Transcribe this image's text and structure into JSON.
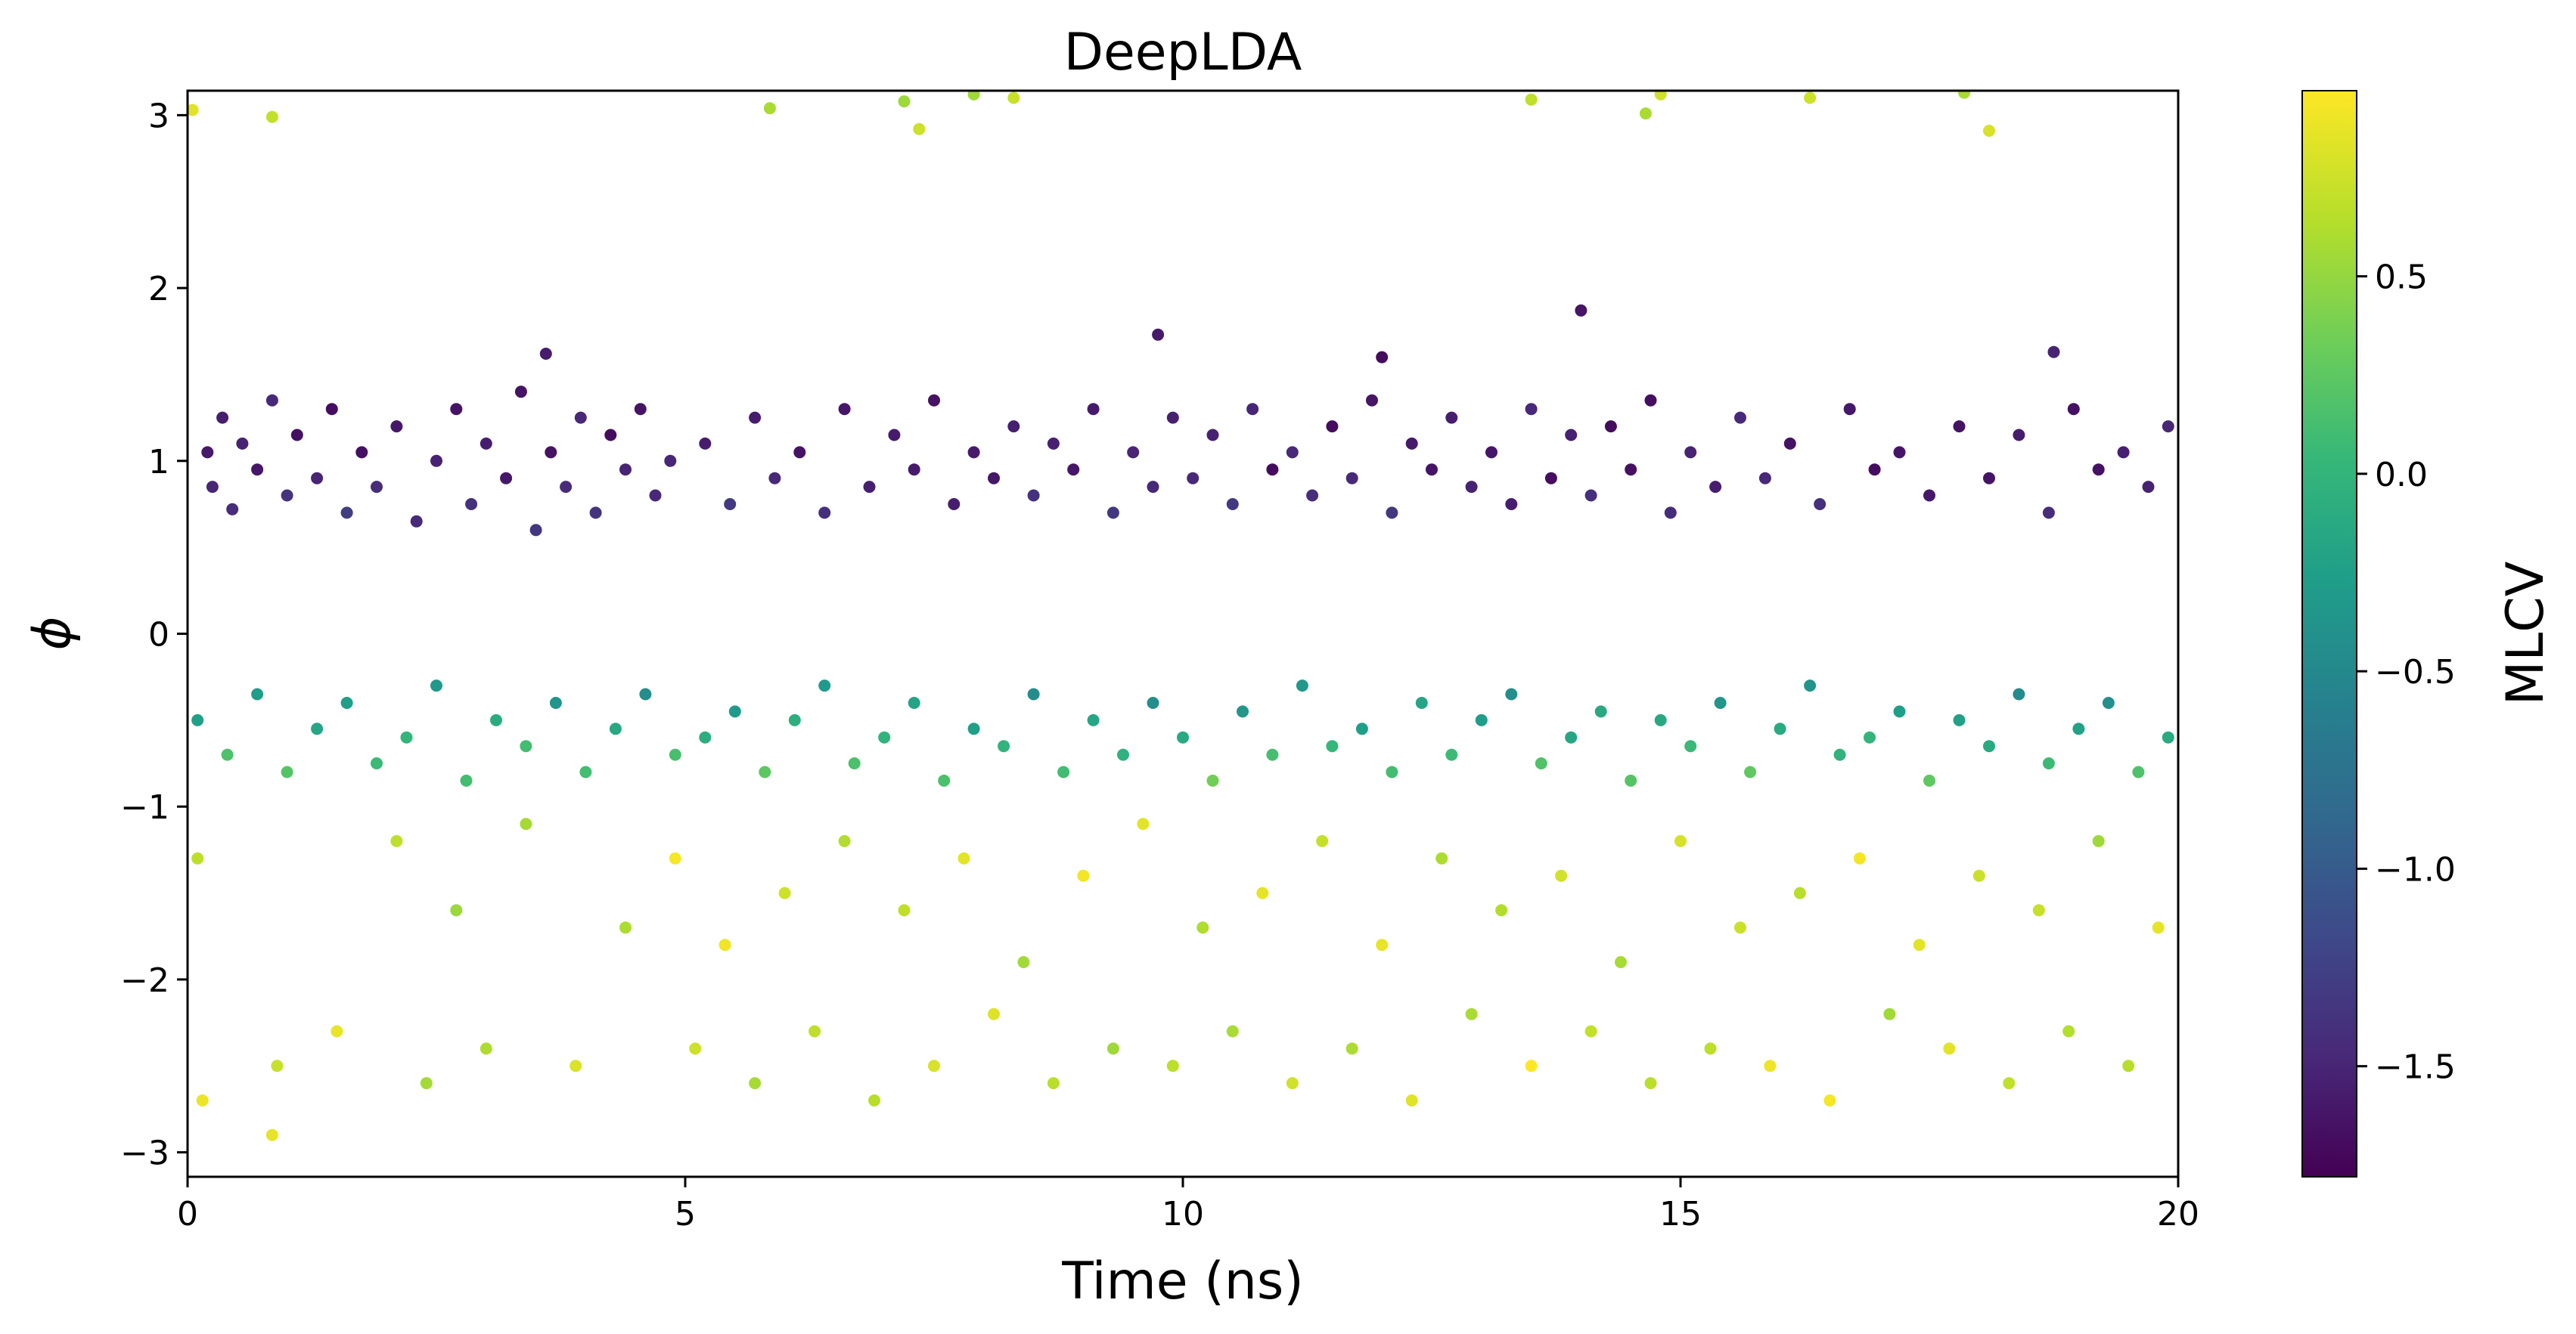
{
  "chart_data": {
    "type": "scatter",
    "title": "DeepLDA",
    "xlabel": "Time (ns)",
    "ylabel": "ϕ",
    "xlim": [
      0,
      20
    ],
    "ylim": [
      -3.14159,
      3.14159
    ],
    "x_ticks": [
      0,
      5,
      10,
      15,
      20
    ],
    "x_tick_labels": [
      "0",
      "5",
      "10",
      "15",
      "20"
    ],
    "y_ticks": [
      -3,
      -2,
      -1,
      0,
      1,
      2,
      3
    ],
    "y_tick_labels": [
      "−3",
      "−2",
      "−1",
      "0",
      "1",
      "2",
      "3"
    ],
    "grid": false,
    "colorbar": {
      "label": "MLCV",
      "colormap": "viridis",
      "range": [
        -1.78,
        0.97
      ],
      "ticks": [
        -1.5,
        -1.0,
        -0.5,
        0.0,
        0.5
      ],
      "tick_labels": [
        "−1.5",
        "−1.0",
        "−0.5",
        "0.0",
        "0.5"
      ]
    },
    "series": [
      {
        "region": "upper state, phi ≈ 0.2 to 1.6",
        "color_value": "≈ -1.6 to -1.2",
        "points": [
          [
            0.2,
            1.05
          ],
          [
            0.25,
            0.85
          ],
          [
            0.35,
            1.25
          ],
          [
            0.45,
            0.72
          ],
          [
            0.55,
            1.1
          ],
          [
            0.7,
            0.95
          ],
          [
            0.85,
            1.35
          ],
          [
            1.0,
            0.8
          ],
          [
            1.1,
            1.15
          ],
          [
            1.3,
            0.9
          ],
          [
            1.45,
            1.3
          ],
          [
            1.6,
            0.7
          ],
          [
            1.75,
            1.05
          ],
          [
            1.9,
            0.85
          ],
          [
            2.1,
            1.2
          ],
          [
            2.3,
            0.65
          ],
          [
            2.5,
            1.0
          ],
          [
            2.7,
            1.3
          ],
          [
            2.85,
            0.75
          ],
          [
            3.0,
            1.1
          ],
          [
            3.2,
            0.9
          ],
          [
            3.35,
            1.4
          ],
          [
            3.5,
            0.6
          ],
          [
            3.65,
            1.05
          ],
          [
            3.8,
            0.85
          ],
          [
            3.95,
            1.25
          ],
          [
            4.1,
            0.7
          ],
          [
            4.25,
            1.15
          ],
          [
            4.4,
            0.95
          ],
          [
            4.55,
            1.3
          ],
          [
            4.7,
            0.8
          ],
          [
            4.85,
            1.0
          ],
          [
            5.2,
            1.1
          ],
          [
            5.45,
            0.75
          ],
          [
            5.7,
            1.25
          ],
          [
            5.9,
            0.9
          ],
          [
            6.15,
            1.05
          ],
          [
            6.4,
            0.7
          ],
          [
            6.6,
            1.3
          ],
          [
            6.85,
            0.85
          ],
          [
            7.1,
            1.15
          ],
          [
            7.3,
            0.95
          ],
          [
            7.5,
            1.35
          ],
          [
            7.7,
            0.75
          ],
          [
            7.9,
            1.05
          ],
          [
            8.1,
            0.9
          ],
          [
            8.3,
            1.2
          ],
          [
            8.5,
            0.8
          ],
          [
            8.7,
            1.1
          ],
          [
            8.9,
            0.95
          ],
          [
            9.1,
            1.3
          ],
          [
            9.3,
            0.7
          ],
          [
            9.5,
            1.05
          ],
          [
            9.7,
            0.85
          ],
          [
            9.9,
            1.25
          ],
          [
            10.1,
            0.9
          ],
          [
            10.3,
            1.15
          ],
          [
            10.5,
            0.75
          ],
          [
            10.7,
            1.3
          ],
          [
            10.9,
            0.95
          ],
          [
            11.1,
            1.05
          ],
          [
            11.3,
            0.8
          ],
          [
            11.5,
            1.2
          ],
          [
            11.7,
            0.9
          ],
          [
            11.9,
            1.35
          ],
          [
            12.1,
            0.7
          ],
          [
            12.3,
            1.1
          ],
          [
            12.5,
            0.95
          ],
          [
            12.7,
            1.25
          ],
          [
            12.9,
            0.85
          ],
          [
            13.1,
            1.05
          ],
          [
            13.3,
            0.75
          ],
          [
            13.5,
            1.3
          ],
          [
            13.7,
            0.9
          ],
          [
            13.9,
            1.15
          ],
          [
            14.1,
            0.8
          ],
          [
            14.3,
            1.2
          ],
          [
            14.5,
            0.95
          ],
          [
            14.7,
            1.35
          ],
          [
            14.9,
            0.7
          ],
          [
            15.1,
            1.05
          ],
          [
            15.35,
            0.85
          ],
          [
            15.6,
            1.25
          ],
          [
            15.85,
            0.9
          ],
          [
            16.1,
            1.1
          ],
          [
            16.4,
            0.75
          ],
          [
            16.7,
            1.3
          ],
          [
            16.95,
            0.95
          ],
          [
            17.2,
            1.05
          ],
          [
            17.5,
            0.8
          ],
          [
            17.8,
            1.2
          ],
          [
            18.1,
            0.9
          ],
          [
            18.4,
            1.15
          ],
          [
            18.7,
            0.7
          ],
          [
            18.95,
            1.3
          ],
          [
            19.2,
            0.95
          ],
          [
            19.45,
            1.05
          ],
          [
            19.7,
            0.85
          ],
          [
            19.9,
            1.2
          ],
          [
            14.0,
            1.87
          ],
          [
            9.75,
            1.73
          ],
          [
            12.0,
            1.6
          ],
          [
            3.6,
            1.62
          ],
          [
            18.75,
            1.63
          ]
        ]
      },
      {
        "region": "transition band, phi ≈ -0.9 to -0.2",
        "color_value": "≈ -0.8 to 0.4",
        "points": [
          [
            0.1,
            -0.5
          ],
          [
            0.4,
            -0.7
          ],
          [
            0.7,
            -0.35
          ],
          [
            1.0,
            -0.8
          ],
          [
            1.3,
            -0.55
          ],
          [
            1.6,
            -0.4
          ],
          [
            1.9,
            -0.75
          ],
          [
            2.2,
            -0.6
          ],
          [
            2.5,
            -0.3
          ],
          [
            2.8,
            -0.85
          ],
          [
            3.1,
            -0.5
          ],
          [
            3.4,
            -0.65
          ],
          [
            3.7,
            -0.4
          ],
          [
            4.0,
            -0.8
          ],
          [
            4.3,
            -0.55
          ],
          [
            4.6,
            -0.35
          ],
          [
            4.9,
            -0.7
          ],
          [
            5.2,
            -0.6
          ],
          [
            5.5,
            -0.45
          ],
          [
            5.8,
            -0.8
          ],
          [
            6.1,
            -0.5
          ],
          [
            6.4,
            -0.3
          ],
          [
            6.7,
            -0.75
          ],
          [
            7.0,
            -0.6
          ],
          [
            7.3,
            -0.4
          ],
          [
            7.6,
            -0.85
          ],
          [
            7.9,
            -0.55
          ],
          [
            8.2,
            -0.65
          ],
          [
            8.5,
            -0.35
          ],
          [
            8.8,
            -0.8
          ],
          [
            9.1,
            -0.5
          ],
          [
            9.4,
            -0.7
          ],
          [
            9.7,
            -0.4
          ],
          [
            10.0,
            -0.6
          ],
          [
            10.3,
            -0.85
          ],
          [
            10.6,
            -0.45
          ],
          [
            10.9,
            -0.7
          ],
          [
            11.2,
            -0.3
          ],
          [
            11.5,
            -0.65
          ],
          [
            11.8,
            -0.55
          ],
          [
            12.1,
            -0.8
          ],
          [
            12.4,
            -0.4
          ],
          [
            12.7,
            -0.7
          ],
          [
            13.0,
            -0.5
          ],
          [
            13.3,
            -0.35
          ],
          [
            13.6,
            -0.75
          ],
          [
            13.9,
            -0.6
          ],
          [
            14.2,
            -0.45
          ],
          [
            14.5,
            -0.85
          ],
          [
            14.8,
            -0.5
          ],
          [
            15.1,
            -0.65
          ],
          [
            15.4,
            -0.4
          ],
          [
            15.7,
            -0.8
          ],
          [
            16.0,
            -0.55
          ],
          [
            16.3,
            -0.3
          ],
          [
            16.6,
            -0.7
          ],
          [
            16.9,
            -0.6
          ],
          [
            17.2,
            -0.45
          ],
          [
            17.5,
            -0.85
          ],
          [
            17.8,
            -0.5
          ],
          [
            18.1,
            -0.65
          ],
          [
            18.4,
            -0.35
          ],
          [
            18.7,
            -0.75
          ],
          [
            19.0,
            -0.55
          ],
          [
            19.3,
            -0.4
          ],
          [
            19.6,
            -0.8
          ],
          [
            19.9,
            -0.6
          ]
        ]
      },
      {
        "region": "lower state, phi ≈ -3.14 to -1.0",
        "color_value": "≈ 0.5 to 0.95",
        "points": [
          [
            0.1,
            -1.3
          ],
          [
            0.15,
            -2.7
          ],
          [
            0.85,
            -2.9
          ],
          [
            0.9,
            -2.5
          ],
          [
            1.5,
            -2.3
          ],
          [
            2.1,
            -1.2
          ],
          [
            2.4,
            -2.6
          ],
          [
            2.7,
            -1.6
          ],
          [
            3.0,
            -2.4
          ],
          [
            3.4,
            -1.1
          ],
          [
            3.9,
            -2.5
          ],
          [
            4.4,
            -1.7
          ],
          [
            4.9,
            -1.3
          ],
          [
            5.1,
            -2.4
          ],
          [
            5.4,
            -1.8
          ],
          [
            5.7,
            -2.6
          ],
          [
            6.0,
            -1.5
          ],
          [
            6.3,
            -2.3
          ],
          [
            6.6,
            -1.2
          ],
          [
            6.9,
            -2.7
          ],
          [
            7.2,
            -1.6
          ],
          [
            7.5,
            -2.5
          ],
          [
            7.8,
            -1.3
          ],
          [
            8.1,
            -2.2
          ],
          [
            8.4,
            -1.9
          ],
          [
            8.7,
            -2.6
          ],
          [
            9.0,
            -1.4
          ],
          [
            9.3,
            -2.4
          ],
          [
            9.6,
            -1.1
          ],
          [
            9.9,
            -2.5
          ],
          [
            10.2,
            -1.7
          ],
          [
            10.5,
            -2.3
          ],
          [
            10.8,
            -1.5
          ],
          [
            11.1,
            -2.6
          ],
          [
            11.4,
            -1.2
          ],
          [
            11.7,
            -2.4
          ],
          [
            12.0,
            -1.8
          ],
          [
            12.3,
            -2.7
          ],
          [
            12.6,
            -1.3
          ],
          [
            12.9,
            -2.2
          ],
          [
            13.2,
            -1.6
          ],
          [
            13.5,
            -2.5
          ],
          [
            13.8,
            -1.4
          ],
          [
            14.1,
            -2.3
          ],
          [
            14.4,
            -1.9
          ],
          [
            14.7,
            -2.6
          ],
          [
            15.0,
            -1.2
          ],
          [
            15.3,
            -2.4
          ],
          [
            15.6,
            -1.7
          ],
          [
            15.9,
            -2.5
          ],
          [
            16.2,
            -1.5
          ],
          [
            16.5,
            -2.7
          ],
          [
            16.8,
            -1.3
          ],
          [
            17.1,
            -2.2
          ],
          [
            17.4,
            -1.8
          ],
          [
            17.7,
            -2.4
          ],
          [
            18.0,
            -1.4
          ],
          [
            18.3,
            -2.6
          ],
          [
            18.6,
            -1.6
          ],
          [
            18.9,
            -2.3
          ],
          [
            19.2,
            -1.2
          ],
          [
            19.5,
            -2.5
          ],
          [
            19.8,
            -1.7
          ],
          [
            0.05,
            3.03
          ],
          [
            0.85,
            2.99
          ],
          [
            5.85,
            3.04
          ],
          [
            7.2,
            3.08
          ],
          [
            7.35,
            2.92
          ],
          [
            7.9,
            3.12
          ],
          [
            8.3,
            3.1
          ],
          [
            13.5,
            3.09
          ],
          [
            14.65,
            3.01
          ],
          [
            14.8,
            3.12
          ],
          [
            16.3,
            3.1
          ],
          [
            17.85,
            3.13
          ],
          [
            18.1,
            2.91
          ]
        ]
      }
    ]
  }
}
